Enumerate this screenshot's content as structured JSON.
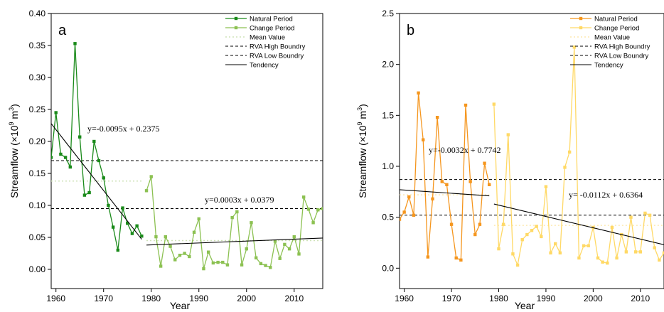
{
  "chart_data": [
    {
      "panel_label": "a",
      "type": "line",
      "xlabel": "Year",
      "ylabel": "Streamflow (×10",
      "ylabel_sup": "9",
      "ylabel_unit": " m",
      "ylabel_sup2": "3",
      "ylabel_close": ")",
      "xlim": [
        1959,
        2016
      ],
      "ylim": [
        -0.03,
        0.4
      ],
      "xticks": [
        1960,
        1970,
        1980,
        1990,
        2000,
        2010
      ],
      "yticks": [
        "0.00",
        "0.05",
        "0.10",
        "0.15",
        "0.20",
        "0.25",
        "0.30",
        "0.35",
        "0.40"
      ],
      "legend": {
        "position": "top-right",
        "entries": [
          "Natural Period",
          "Change Period",
          "Mean Value",
          "RVA High Boundry",
          "RVA Low Boundry",
          "Tendency"
        ]
      },
      "colors": {
        "natural": "#1a8a1a",
        "change": "#8cc152",
        "mean": "#cfe3b8",
        "rva": "#000000",
        "tendency": "#000000"
      },
      "series": [
        {
          "name": "Natural Period",
          "x": [
            1959,
            1960,
            1961,
            1962,
            1963,
            1964,
            1965,
            1966,
            1967,
            1968,
            1969,
            1970,
            1971,
            1972,
            1973,
            1974,
            1975,
            1976,
            1977,
            1978
          ],
          "y": [
            0.175,
            0.245,
            0.18,
            0.175,
            0.16,
            0.353,
            0.207,
            0.116,
            0.12,
            0.2,
            0.17,
            0.143,
            0.1,
            0.066,
            0.03,
            0.096,
            0.072,
            0.056,
            0.068,
            0.052
          ]
        },
        {
          "name": "Change Period",
          "x": [
            1979,
            1980,
            1981,
            1982,
            1983,
            1984,
            1985,
            1986,
            1987,
            1988,
            1989,
            1990,
            1991,
            1992,
            1993,
            1994,
            1995,
            1996,
            1997,
            1998,
            1999,
            2000,
            2001,
            2002,
            2003,
            2004,
            2005,
            2006,
            2007,
            2008,
            2009,
            2010,
            2011,
            2012,
            2013,
            2014,
            2015,
            2016
          ],
          "y": [
            0.123,
            0.145,
            0.051,
            0.005,
            0.051,
            0.036,
            0.015,
            0.022,
            0.025,
            0.02,
            0.058,
            0.079,
            0.001,
            0.027,
            0.01,
            0.011,
            0.011,
            0.007,
            0.081,
            0.09,
            0.007,
            0.032,
            0.073,
            0.018,
            0.009,
            0.006,
            0.003,
            0.044,
            0.017,
            0.039,
            0.032,
            0.051,
            0.024,
            0.113,
            0.094,
            0.073,
            0.093,
            0.095
          ]
        }
      ],
      "mean_natural": 0.138,
      "mean_change": 0.045,
      "rva_high": 0.17,
      "rva_low": 0.095,
      "trends": [
        {
          "label": "y=-0.0095x + 0.2375",
          "x_from": 1959,
          "x_to": 1978,
          "y_from": 0.228,
          "y_to": 0.047
        },
        {
          "label": "y=0.0003x + 0.0379",
          "x_from": 1979,
          "x_to": 2016,
          "y_from": 0.038,
          "y_to": 0.049
        }
      ]
    },
    {
      "panel_label": "b",
      "type": "line",
      "xlabel": "Year",
      "ylabel": "Streamflow (×10",
      "ylabel_sup": "9",
      "ylabel_unit": " m",
      "ylabel_sup2": "3",
      "ylabel_close": ")",
      "xlim": [
        1959,
        2015
      ],
      "ylim": [
        -0.2,
        2.5
      ],
      "xticks": [
        1960,
        1970,
        1980,
        1990,
        2000,
        2010
      ],
      "yticks": [
        "0.0",
        "0.5",
        "1.0",
        "1.5",
        "2.0",
        "2.5"
      ],
      "legend": {
        "position": "top-right",
        "entries": [
          "Natural Period",
          "Change Period",
          "Mean Value",
          "RVA High Boundry",
          "RVA Low Boundry",
          "Tendency"
        ]
      },
      "colors": {
        "natural": "#f5961e",
        "change": "#ffd966",
        "mean": "#fde9b0",
        "rva": "#000000",
        "tendency": "#000000"
      },
      "series": [
        {
          "name": "Natural Period",
          "x": [
            1959,
            1960,
            1961,
            1962,
            1963,
            1964,
            1965,
            1966,
            1967,
            1968,
            1969,
            1970,
            1971,
            1972,
            1973,
            1974,
            1975,
            1976,
            1977,
            1978
          ],
          "y": [
            0.48,
            0.55,
            0.7,
            0.52,
            1.72,
            1.26,
            0.11,
            0.68,
            1.48,
            0.85,
            0.82,
            0.43,
            0.1,
            0.08,
            1.6,
            0.85,
            0.33,
            0.43,
            1.03,
            0.82
          ]
        },
        {
          "name": "Change Period",
          "x": [
            1979,
            1980,
            1981,
            1982,
            1983,
            1984,
            1985,
            1986,
            1987,
            1988,
            1989,
            1990,
            1991,
            1992,
            1993,
            1994,
            1995,
            1996,
            1997,
            1998,
            1999,
            2000,
            2001,
            2002,
            2003,
            2004,
            2005,
            2006,
            2007,
            2008,
            2009,
            2010,
            2011,
            2012,
            2013,
            2014,
            2015
          ],
          "y": [
            1.61,
            0.19,
            0.43,
            1.31,
            0.14,
            0.03,
            0.28,
            0.33,
            0.37,
            0.41,
            0.31,
            0.8,
            0.15,
            0.24,
            0.15,
            0.99,
            1.14,
            2.17,
            0.1,
            0.22,
            0.22,
            0.4,
            0.1,
            0.06,
            0.05,
            0.4,
            0.1,
            0.33,
            0.16,
            0.5,
            0.16,
            0.16,
            0.54,
            0.52,
            0.2,
            0.08,
            0.15
          ]
        }
      ],
      "mean_natural": 0.72,
      "mean_change": 0.42,
      "rva_high": 0.87,
      "rva_low": 0.52,
      "trends": [
        {
          "label": "y=-0.0032x + 0.7742",
          "x_from": 1959,
          "x_to": 1978,
          "y_from": 0.77,
          "y_to": 0.71
        },
        {
          "label": "y= -0.0112x + 0.6364",
          "x_from": 1979,
          "x_to": 2015,
          "y_from": 0.63,
          "y_to": 0.23
        }
      ]
    }
  ]
}
